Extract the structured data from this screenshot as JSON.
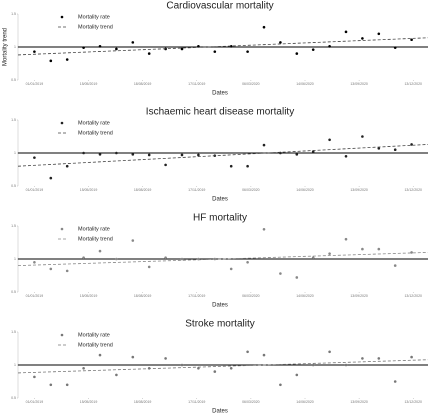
{
  "chart_data": [
    {
      "type": "scatter",
      "title": "Cardiovascular mortality",
      "x_label": "Dates",
      "y_label": "Mortality trend",
      "xlim": [
        0,
        25
      ],
      "ylim": [
        0.5,
        1.5
      ],
      "yticks": [
        0.5,
        1,
        1.5
      ],
      "reference_line": 1,
      "xticks": [
        {
          "value": 1,
          "label": "01/01/2019"
        },
        {
          "value": 4.3,
          "label": "15/05/2019"
        },
        {
          "value": 7.6,
          "label": "18/08/2019"
        },
        {
          "value": 10.9,
          "label": "17/11/2019"
        },
        {
          "value": 14.2,
          "label": "06/03/2020"
        },
        {
          "value": 17.5,
          "label": "14/06/2020"
        },
        {
          "value": 20.8,
          "label": "13/09/2020"
        },
        {
          "value": 24.1,
          "label": "13/12/2020"
        }
      ],
      "series": [
        {
          "name": "Mortality rate",
          "color": "#000000",
          "x": [
            1,
            2,
            3,
            4,
            5,
            6,
            7,
            8,
            9,
            10,
            11,
            12,
            13,
            14,
            15,
            16,
            17,
            18,
            19,
            20,
            21,
            22,
            23,
            24
          ],
          "values": [
            0.93,
            0.79,
            0.81,
            0.99,
            1.01,
            0.97,
            1.07,
            0.9,
            0.97,
            0.97,
            1.01,
            0.93,
            1.01,
            0.93,
            1.3,
            1.07,
            0.9,
            0.96,
            1.01,
            1.23,
            1.13,
            1.2,
            0.99,
            1.11
          ]
        },
        {
          "name": "Mortality trend",
          "color": "#444444",
          "x": [
            0,
            25
          ],
          "values": [
            0.88,
            1.14
          ]
        }
      ]
    },
    {
      "type": "scatter",
      "title": "Ischaemic heart disease mortality",
      "x_label": "Dates",
      "xlim": [
        0,
        25
      ],
      "ylim": [
        0.5,
        1.5
      ],
      "yticks": [
        0.5,
        1,
        1.5
      ],
      "reference_line": 1,
      "xticks": [
        {
          "value": 1,
          "label": "01/01/2019"
        },
        {
          "value": 4.3,
          "label": "15/05/2019"
        },
        {
          "value": 7.6,
          "label": "18/08/2019"
        },
        {
          "value": 10.9,
          "label": "17/11/2019"
        },
        {
          "value": 14.2,
          "label": "06/03/2020"
        },
        {
          "value": 17.5,
          "label": "14/06/2020"
        },
        {
          "value": 20.8,
          "label": "13/09/2020"
        },
        {
          "value": 24.1,
          "label": "13/12/2020"
        }
      ],
      "series": [
        {
          "name": "Mortality rate",
          "color": "#222222",
          "x": [
            1,
            2,
            3,
            4,
            5,
            6,
            7,
            8,
            9,
            10,
            11,
            12,
            13,
            14,
            15,
            16,
            17,
            18,
            19,
            20,
            21,
            22,
            23,
            24
          ],
          "values": [
            0.93,
            0.62,
            0.8,
            1.0,
            0.98,
            1.0,
            0.98,
            0.97,
            0.82,
            0.97,
            0.97,
            0.96,
            0.8,
            0.8,
            1.12,
            1.0,
            0.98,
            1.02,
            1.2,
            0.95,
            1.25,
            1.07,
            1.05,
            1.13
          ]
        },
        {
          "name": "Mortality trend",
          "color": "#444444",
          "x": [
            0,
            25
          ],
          "values": [
            0.8,
            1.13
          ]
        }
      ]
    },
    {
      "type": "scatter",
      "title": "HF mortality",
      "x_label": "Dates",
      "xlim": [
        0,
        25
      ],
      "ylim": [
        0.5,
        1.5
      ],
      "yticks": [
        0.5,
        1,
        1.5
      ],
      "reference_line": 1,
      "xticks": [
        {
          "value": 1,
          "label": "01/01/2019"
        },
        {
          "value": 4.3,
          "label": "15/05/2019"
        },
        {
          "value": 7.6,
          "label": "18/08/2019"
        },
        {
          "value": 10.9,
          "label": "17/11/2019"
        },
        {
          "value": 14.2,
          "label": "06/03/2020"
        },
        {
          "value": 17.5,
          "label": "14/06/2020"
        },
        {
          "value": 20.8,
          "label": "13/09/2020"
        },
        {
          "value": 24.1,
          "label": "13/12/2020"
        }
      ],
      "series": [
        {
          "name": "Mortality rate",
          "color": "#888888",
          "x": [
            1,
            2,
            3,
            4,
            5,
            6,
            7,
            8,
            9,
            10,
            11,
            12,
            13,
            14,
            15,
            16,
            17,
            18,
            19,
            20,
            21,
            22,
            23,
            24
          ],
          "values": [
            0.95,
            0.85,
            0.82,
            1.02,
            1.12,
            1.0,
            1.28,
            0.88,
            1.02,
            1.0,
            1.0,
            1.0,
            0.85,
            0.95,
            1.45,
            0.78,
            0.72,
            1.02,
            1.08,
            1.3,
            1.15,
            1.15,
            0.9,
            1.1
          ]
        },
        {
          "name": "Mortality trend",
          "color": "#888888",
          "x": [
            0,
            25
          ],
          "values": [
            0.9,
            1.1
          ]
        }
      ]
    },
    {
      "type": "scatter",
      "title": "Stroke mortality",
      "x_label": "Dates",
      "xlim": [
        0,
        25
      ],
      "ylim": [
        0.5,
        1.5
      ],
      "yticks": [
        0.5,
        1,
        1.5
      ],
      "reference_line": 1,
      "xticks": [
        {
          "value": 1,
          "label": "01/01/2019"
        },
        {
          "value": 4.3,
          "label": "15/05/2019"
        },
        {
          "value": 7.6,
          "label": "18/08/2019"
        },
        {
          "value": 10.9,
          "label": "17/11/2019"
        },
        {
          "value": 14.2,
          "label": "06/03/2020"
        },
        {
          "value": 17.5,
          "label": "14/06/2020"
        },
        {
          "value": 20.8,
          "label": "13/09/2020"
        },
        {
          "value": 24.1,
          "label": "13/12/2020"
        }
      ],
      "series": [
        {
          "name": "Mortality rate",
          "color": "#777777",
          "x": [
            1,
            2,
            3,
            4,
            5,
            6,
            7,
            8,
            9,
            10,
            11,
            12,
            13,
            14,
            15,
            16,
            17,
            18,
            19,
            20,
            21,
            22,
            23,
            24
          ],
          "values": [
            0.82,
            0.7,
            0.7,
            0.95,
            1.15,
            0.85,
            1.12,
            0.95,
            1.1,
            1.0,
            0.95,
            0.9,
            0.95,
            1.2,
            1.15,
            0.7,
            0.85,
            1.0,
            1.2,
            1.0,
            1.1,
            1.1,
            0.75,
            1.12
          ]
        },
        {
          "name": "Mortality trend",
          "color": "#777777",
          "x": [
            0,
            25
          ],
          "values": [
            0.88,
            1.08
          ]
        }
      ]
    }
  ]
}
